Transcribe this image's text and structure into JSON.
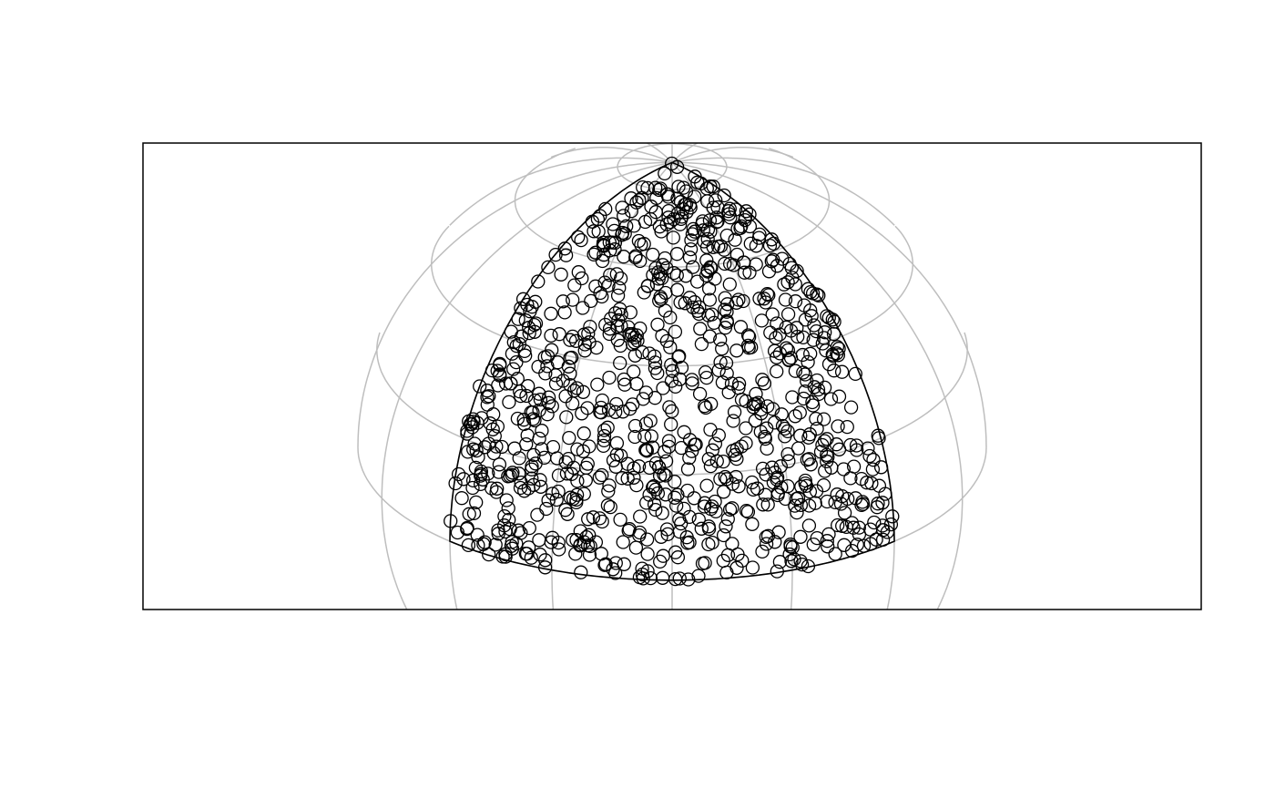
{
  "chart_data": {
    "type": "scatter"
  }
}
